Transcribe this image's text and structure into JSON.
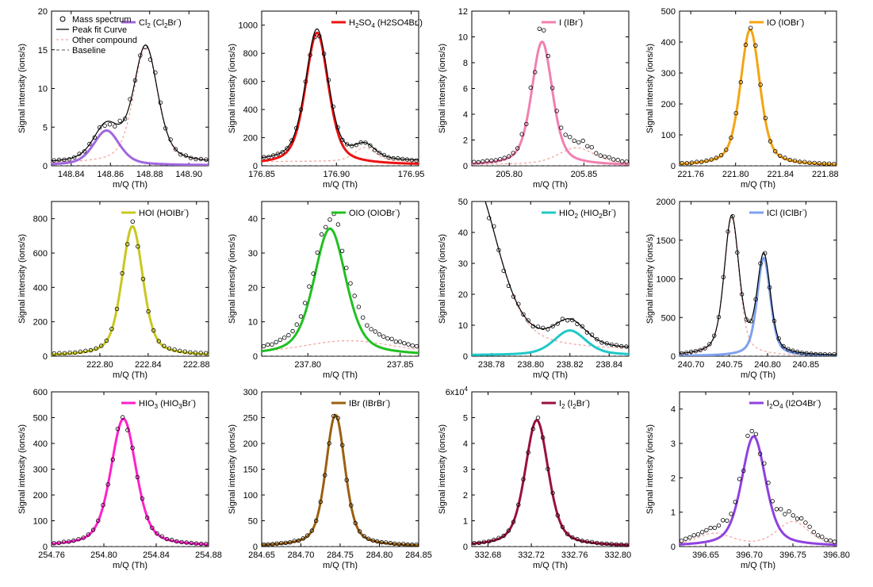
{
  "figure": {
    "legend_common": [
      "Mass spectrum",
      "Peak fit Curve",
      "Other compound",
      "Baseline"
    ],
    "colors": {
      "data": "#000000",
      "fit": "#000000",
      "other": "#f4a6a0",
      "baseline": "#555555"
    }
  },
  "chart_data": [
    {
      "id": "cl2",
      "type": "line",
      "xlabel": "m/Q (Th)",
      "ylabel": "Signal intensity (ions/s)",
      "legend": {
        "main": "Cl",
        "sub": "2",
        "rest": " (Cl",
        "sub2": "2",
        "tail": "Br",
        "sup": "-",
        "close": ")"
      },
      "color": "#a066e0",
      "xlim": [
        148.83,
        148.91
      ],
      "ylim": [
        0,
        20
      ],
      "xticks": [
        148.84,
        148.86,
        148.88,
        148.9
      ],
      "xtick_labels": [
        "148.84",
        "148.86",
        "148.88",
        "148.90"
      ],
      "yticks": [
        0,
        5,
        10,
        15,
        20
      ],
      "ytick_labels": [
        "0",
        "5",
        "10",
        "15",
        "20"
      ],
      "yexp": "",
      "peak": {
        "mu": 148.858,
        "A": 4.5,
        "w": 0.0065
      },
      "other": [
        {
          "mu": 148.878,
          "A": 15.0,
          "w": 0.006
        }
      ],
      "fit_total": true,
      "bg": {
        "type": "const",
        "v": 0.3
      },
      "noise": 0.08,
      "npts": 31
    },
    {
      "id": "h2so4",
      "type": "line",
      "xlabel": "m/Q (Th)",
      "ylabel": "Signal intensity (ions/s)",
      "legend": {
        "main": "H",
        "sub": "2",
        "rest": "SO",
        "sub2": "4",
        "tail": " (H2SO4Br",
        "sup": "-",
        "close": ")"
      },
      "color": "#ee1111",
      "xlim": [
        176.85,
        176.955
      ],
      "ylim": [
        0,
        1100
      ],
      "xticks": [
        176.85,
        176.9,
        176.95
      ],
      "xtick_labels": [
        "176.85",
        "176.90",
        "176.95"
      ],
      "yticks": [
        0,
        200,
        400,
        600,
        800,
        1000
      ],
      "ytick_labels": [
        "0",
        "200",
        "400",
        "600",
        "800",
        "1000"
      ],
      "yexp": "",
      "peak": {
        "mu": 176.887,
        "A": 940,
        "w": 0.0075
      },
      "other": [
        {
          "mu": 176.919,
          "A": 100,
          "w": 0.007
        }
      ],
      "fit_total": true,
      "bg": {
        "type": "const",
        "v": 30
      },
      "noise": 0.04,
      "npts": 34
    },
    {
      "id": "i",
      "type": "line",
      "xlabel": "m/Q (Th)",
      "ylabel": "Signal intensity (ions/s)",
      "legend": {
        "main": "I",
        "sub": "",
        "rest": " (IBr",
        "sub2": "",
        "tail": "",
        "sup": "-",
        "close": ")"
      },
      "color": "#f080b0",
      "xlim": [
        205.775,
        205.88
      ],
      "ylim": [
        0,
        12
      ],
      "xticks": [
        205.8,
        205.85
      ],
      "xtick_labels": [
        "205.80",
        "205.85"
      ],
      "yticks": [
        0,
        2,
        4,
        6,
        8,
        10,
        12
      ],
      "ytick_labels": [
        "0",
        "2",
        "4",
        "6",
        "8",
        "10",
        "12"
      ],
      "yexp": "",
      "peak": {
        "mu": 205.822,
        "A": 9.6,
        "w": 0.0068
      },
      "other": [
        {
          "mu": 205.845,
          "A": 1.3,
          "w": 0.012
        }
      ],
      "fit_total": false,
      "bg": {
        "type": "const",
        "v": 0.1
      },
      "noise": 0.12,
      "npts": 36
    },
    {
      "id": "io",
      "type": "line",
      "xlabel": "m/Q (Th)",
      "ylabel": "Signal intensity (ions/s)",
      "legend": {
        "main": "IO",
        "sub": "",
        "rest": " (IOBr",
        "sub2": "",
        "tail": "",
        "sup": "-",
        "close": ")"
      },
      "color": "#f5a412",
      "xlim": [
        221.75,
        221.89
      ],
      "ylim": [
        0,
        500
      ],
      "xticks": [
        221.76,
        221.8,
        221.84,
        221.88
      ],
      "xtick_labels": [
        "221.76",
        "221.80",
        "221.84",
        "221.88"
      ],
      "yticks": [
        0,
        100,
        200,
        300,
        400,
        500
      ],
      "ytick_labels": [
        "0",
        "100",
        "200",
        "300",
        "400",
        "500"
      ],
      "yexp": "",
      "peak": {
        "mu": 221.813,
        "A": 440,
        "w": 0.0085
      },
      "other": [],
      "fit_total": false,
      "bg": {
        "type": "const",
        "v": 2
      },
      "noise": 0.04,
      "npts": 32
    },
    {
      "id": "hoi",
      "type": "line",
      "xlabel": "m/Q (Th)",
      "ylabel": "Signal intensity (ions/s)",
      "legend": {
        "main": "HOI",
        "sub": "",
        "rest": " (HOIBr",
        "sub2": "",
        "tail": "",
        "sup": "-",
        "close": ")"
      },
      "color": "#c8c820",
      "xlim": [
        222.76,
        222.89
      ],
      "ylim": [
        0,
        900
      ],
      "xticks": [
        222.8,
        222.84,
        222.88
      ],
      "xtick_labels": [
        "222.80",
        "222.84",
        "222.88"
      ],
      "yticks": [
        0,
        200,
        400,
        600,
        800
      ],
      "ytick_labels": [
        "0",
        "200",
        "400",
        "600",
        "800"
      ],
      "yexp": "",
      "peak": {
        "mu": 222.827,
        "A": 755,
        "w": 0.0085
      },
      "other": [],
      "fit_total": false,
      "bg": {
        "type": "const",
        "v": 5
      },
      "noise": 0.03,
      "npts": 30
    },
    {
      "id": "oio",
      "type": "line",
      "xlabel": "m/Q (Th)",
      "ylabel": "Signal intensity (ions/s)",
      "legend": {
        "main": "OIO",
        "sub": "",
        "rest": " (OIOBr",
        "sub2": "",
        "tail": "",
        "sup": "-",
        "close": ")"
      },
      "color": "#20c020",
      "xlim": [
        237.775,
        237.86
      ],
      "ylim": [
        0,
        45
      ],
      "xticks": [
        237.8,
        237.85
      ],
      "xtick_labels": [
        "237.80",
        "237.85"
      ],
      "yticks": [
        0,
        10,
        20,
        30,
        40
      ],
      "ytick_labels": [
        "0",
        "10",
        "20",
        "30",
        "40"
      ],
      "yexp": "",
      "peak": {
        "mu": 237.812,
        "A": 37,
        "w": 0.0085
      },
      "other": [
        {
          "mu": 237.822,
          "A": 4,
          "w": 0.025
        }
      ],
      "fit_total": false,
      "bg": {
        "type": "const",
        "v": 0.5
      },
      "noise": 0.05,
      "npts": 38
    },
    {
      "id": "hio2",
      "type": "line",
      "xlabel": "m/Q (Th)",
      "ylabel": "Signal intensity (ions/s)",
      "legend": {
        "main": "HIO",
        "sub": "2",
        "rest": " (HIO",
        "sub2": "2",
        "tail": "Br",
        "sup": "-",
        "close": ")"
      },
      "color": "#20c8c8",
      "xlim": [
        238.77,
        238.85
      ],
      "ylim": [
        0,
        50
      ],
      "xticks": [
        238.78,
        238.8,
        238.82,
        238.84
      ],
      "xtick_labels": [
        "238.78",
        "238.80",
        "238.82",
        "238.84"
      ],
      "yticks": [
        0,
        10,
        20,
        30,
        40,
        50
      ],
      "ytick_labels": [
        "0",
        "10",
        "20",
        "30",
        "40",
        "50"
      ],
      "yexp": "",
      "peak": {
        "mu": 238.82,
        "A": 8,
        "w": 0.008
      },
      "other": [
        {
          "mu": 238.77,
          "A": 56,
          "w": 0.013
        }
      ],
      "fit_total": true,
      "bg": {
        "type": "const",
        "v": 1.5
      },
      "noise": 0.05,
      "npts": 32
    },
    {
      "id": "icl",
      "type": "line",
      "xlabel": "m/Q (Th)",
      "ylabel": "Signal intensity (ions/s)",
      "legend": {
        "main": "ICl",
        "sub": "",
        "rest": " (IClBr",
        "sub2": "",
        "tail": "",
        "sup": "-",
        "close": ")"
      },
      "color": "#7fa1ee",
      "xlim": [
        240.685,
        240.89
      ],
      "ylim": [
        0,
        2000
      ],
      "xticks": [
        240.7,
        240.75,
        240.8,
        240.85
      ],
      "xtick_labels": [
        "240.70",
        "240.75",
        "240.80",
        "240.85"
      ],
      "yticks": [
        0,
        500,
        1000,
        1500,
        2000
      ],
      "ytick_labels": [
        "0",
        "500",
        "1000",
        "1500",
        "2000"
      ],
      "yexp": "",
      "peak": {
        "mu": 240.795,
        "A": 1270,
        "w": 0.0085
      },
      "other": [
        {
          "mu": 240.753,
          "A": 1780,
          "w": 0.0095
        }
      ],
      "fit_total": true,
      "bg": {
        "type": "const",
        "v": 5
      },
      "noise": 0.03,
      "npts": 34
    },
    {
      "id": "hio3",
      "type": "line",
      "xlabel": "m/Q (Th)",
      "ylabel": "Signal intensity (ions/s)",
      "legend": {
        "main": "HIO",
        "sub": "3",
        "rest": " (HIO",
        "sub2": "3",
        "tail": "Br",
        "sup": "-",
        "close": ")"
      },
      "color": "#ff20c8",
      "xlim": [
        254.76,
        254.88
      ],
      "ylim": [
        0,
        600
      ],
      "xticks": [
        254.76,
        254.8,
        254.84,
        254.88
      ],
      "xtick_labels": [
        "254.76",
        "254.80",
        "254.84",
        "254.88"
      ],
      "yticks": [
        0,
        100,
        200,
        300,
        400,
        500,
        600
      ],
      "ytick_labels": [
        "0",
        "100",
        "200",
        "300",
        "400",
        "500",
        "600"
      ],
      "yexp": "",
      "peak": {
        "mu": 254.815,
        "A": 495,
        "w": 0.0095
      },
      "other": [],
      "fit_total": false,
      "bg": {
        "type": "const",
        "v": 2
      },
      "noise": 0.04,
      "npts": 32
    },
    {
      "id": "ibr",
      "type": "line",
      "xlabel": "m/Q (Th)",
      "ylabel": "Signal intensity (ions/s)",
      "legend": {
        "main": "IBr",
        "sub": "",
        "rest": " (IBrBr",
        "sub2": "",
        "tail": "",
        "sup": "-",
        "close": ")"
      },
      "color": "#9a6010",
      "xlim": [
        284.65,
        284.85
      ],
      "ylim": [
        0,
        300
      ],
      "xticks": [
        284.65,
        284.7,
        284.75,
        284.8,
        284.85
      ],
      "xtick_labels": [
        "284.65",
        "284.70",
        "284.75",
        "284.80",
        "284.85"
      ],
      "yticks": [
        0,
        50,
        100,
        150,
        200,
        250,
        300
      ],
      "ytick_labels": [
        "0",
        "50",
        "100",
        "150",
        "200",
        "250",
        "300"
      ],
      "yexp": "",
      "peak": {
        "mu": 284.744,
        "A": 255,
        "w": 0.012
      },
      "other": [],
      "fit_total": false,
      "bg": {
        "type": "const",
        "v": 1
      },
      "noise": 0.03,
      "npts": 36
    },
    {
      "id": "i2",
      "type": "line",
      "xlabel": "m/Q (Th)",
      "ylabel": "Signal intensity (ions/s)",
      "legend": {
        "main": "I",
        "sub": "2",
        "rest": " (I",
        "sub2": "2",
        "tail": "Br",
        "sup": "-",
        "close": ")"
      },
      "color": "#9a1040",
      "xlim": [
        332.665,
        332.81
      ],
      "ylim": [
        0,
        6
      ],
      "xticks": [
        332.68,
        332.72,
        332.76,
        332.8
      ],
      "xtick_labels": [
        "332.68",
        "332.72",
        "332.76",
        "332.80"
      ],
      "yticks": [
        0,
        1,
        2,
        3,
        4,
        5,
        6
      ],
      "ytick_labels": [
        "0",
        "1",
        "2",
        "3",
        "4",
        "5",
        "6x10"
      ],
      "yexp": "4",
      "peak": {
        "mu": 332.725,
        "A": 4.9,
        "w": 0.0105
      },
      "other": [],
      "fit_total": false,
      "bg": {
        "type": "const",
        "v": 0.02
      },
      "noise": 0.03,
      "npts": 32
    },
    {
      "id": "i2o4",
      "type": "line",
      "xlabel": "m/Q (Th)",
      "ylabel": "Signal intensity (ions/s)",
      "legend": {
        "main": "I",
        "sub": "2",
        "rest": "O",
        "sub2": "4",
        "tail": " (I2O4Br",
        "sup": "-",
        "close": ")"
      },
      "color": "#9040e0",
      "xlim": [
        396.62,
        396.8
      ],
      "ylim": [
        0,
        4.5
      ],
      "xticks": [
        396.65,
        396.7,
        396.75,
        396.8
      ],
      "xtick_labels": [
        "396.65",
        "396.70",
        "396.75",
        "396.80"
      ],
      "yticks": [
        0,
        1,
        2,
        3,
        4
      ],
      "ytick_labels": [
        "0",
        "1",
        "2",
        "3",
        "4"
      ],
      "yexp": "",
      "peak": {
        "mu": 396.705,
        "A": 3.2,
        "w": 0.0135
      },
      "other": [
        {
          "mu": 396.66,
          "A": 0.35,
          "w": 0.02
        },
        {
          "mu": 396.75,
          "A": 0.7,
          "w": 0.018
        }
      ],
      "fit_total": false,
      "bg": {
        "type": "const",
        "v": 0.02
      },
      "noise": 0.1,
      "npts": 38
    }
  ]
}
